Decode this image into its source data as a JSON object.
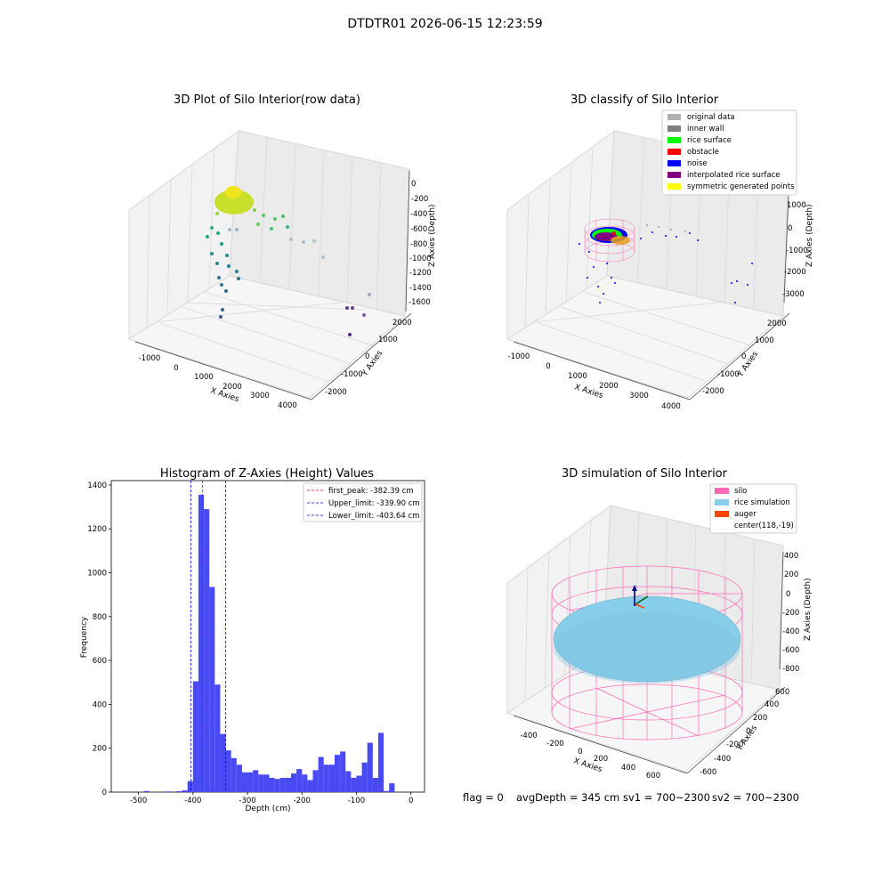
{
  "header": {
    "title": "DTDTR01 2026-06-15 12:23:59"
  },
  "chart_data": [
    {
      "type": "scatter",
      "title": "3D Plot of Silo Interior(row data)",
      "xlabel": "X Axies",
      "ylabel": "Y Axies",
      "zlabel": "Z Axies (Depth)",
      "x_ticks": [
        "-1000",
        "0",
        "1000",
        "2000",
        "3000",
        "4000"
      ],
      "y_ticks": [
        "2000",
        "1000",
        "0",
        "-1000",
        "-2000"
      ],
      "z_ticks": [
        "0",
        "-200",
        "-400",
        "-600",
        "-800",
        "-1000",
        "-1200",
        "-1400",
        "-1600"
      ],
      "colormap": "viridis"
    },
    {
      "type": "scatter",
      "title": "3D classify of Silo Interior",
      "xlabel": "X Axies",
      "ylabel": "Y Axies",
      "zlabel": "Z Axies (Depth)",
      "x_ticks": [
        "-1000",
        "0",
        "1000",
        "2000",
        "3000",
        "4000"
      ],
      "y_ticks": [
        "2000",
        "1000",
        "0",
        "-1000",
        "-2000"
      ],
      "z_ticks": [
        "1000",
        "0",
        "-1000",
        "-2000",
        "-3000"
      ],
      "legend_position": "top-right",
      "legend": [
        {
          "label": "original data",
          "color": "#b0b0b0"
        },
        {
          "label": "inner wall",
          "color": "#808080"
        },
        {
          "label": "rice surface",
          "color": "#00ff00"
        },
        {
          "label": "obstacle",
          "color": "#ff0000"
        },
        {
          "label": "noise",
          "color": "#0000ff"
        },
        {
          "label": "interpolated rice surface",
          "color": "#800080"
        },
        {
          "label": "symmetric generated points",
          "color": "#ffff00"
        }
      ]
    },
    {
      "type": "bar",
      "title": "Histogram of Z-Axies (Height) Values",
      "xlabel": "Depth (cm)",
      "ylabel": "Frequency",
      "xlim": [
        -550,
        25
      ],
      "ylim": [
        0,
        1420
      ],
      "x_ticks": [
        -500,
        -400,
        -300,
        -200,
        -100,
        0
      ],
      "y_ticks": [
        0,
        200,
        400,
        600,
        800,
        1000,
        1200,
        1400
      ],
      "bin_width": 10,
      "bars": [
        {
          "x": -485,
          "y": 5
        },
        {
          "x": -445,
          "y": 3
        },
        {
          "x": -425,
          "y": 4
        },
        {
          "x": -415,
          "y": 8
        },
        {
          "x": -405,
          "y": 50
        },
        {
          "x": -395,
          "y": 505
        },
        {
          "x": -385,
          "y": 1355
        },
        {
          "x": -375,
          "y": 1290
        },
        {
          "x": -365,
          "y": 935
        },
        {
          "x": -355,
          "y": 490
        },
        {
          "x": -345,
          "y": 265
        },
        {
          "x": -335,
          "y": 190
        },
        {
          "x": -325,
          "y": 155
        },
        {
          "x": -315,
          "y": 125
        },
        {
          "x": -305,
          "y": 90
        },
        {
          "x": -295,
          "y": 90
        },
        {
          "x": -285,
          "y": 100
        },
        {
          "x": -275,
          "y": 80
        },
        {
          "x": -265,
          "y": 80
        },
        {
          "x": -255,
          "y": 65
        },
        {
          "x": -245,
          "y": 60
        },
        {
          "x": -235,
          "y": 65
        },
        {
          "x": -225,
          "y": 65
        },
        {
          "x": -215,
          "y": 85
        },
        {
          "x": -205,
          "y": 105
        },
        {
          "x": -195,
          "y": 80
        },
        {
          "x": -185,
          "y": 55
        },
        {
          "x": -175,
          "y": 100
        },
        {
          "x": -165,
          "y": 160
        },
        {
          "x": -155,
          "y": 125
        },
        {
          "x": -145,
          "y": 125
        },
        {
          "x": -135,
          "y": 170
        },
        {
          "x": -125,
          "y": 185
        },
        {
          "x": -115,
          "y": 95
        },
        {
          "x": -105,
          "y": 65
        },
        {
          "x": -95,
          "y": 75
        },
        {
          "x": -85,
          "y": 135
        },
        {
          "x": -75,
          "y": 225
        },
        {
          "x": -65,
          "y": 65
        },
        {
          "x": -55,
          "y": 270
        },
        {
          "x": -45,
          "y": 5
        },
        {
          "x": -35,
          "y": 40
        }
      ],
      "lines": [
        {
          "label": "first_peak: -382.39 cm",
          "value": -382.39,
          "color": "#ff0000"
        },
        {
          "label": "Upper_limit: -339.90 cm",
          "value": -339.9,
          "color": "#0000ff"
        },
        {
          "label": "Lower_limit: -403.64 cm",
          "value": -403.64,
          "color": "#0000ff"
        }
      ],
      "bar_color": "#4a4af5",
      "legend_position": "top-right"
    },
    {
      "type": "scatter",
      "title": "3D simulation of Silo Interior",
      "xlabel": "X Axies",
      "ylabel": "Y Axies",
      "zlabel": "Z Axies (Depth)",
      "x_ticks": [
        "-400",
        "-200",
        "0",
        "200",
        "400",
        "600"
      ],
      "y_ticks": [
        "600",
        "400",
        "200",
        "0",
        "-200",
        "-400",
        "-600"
      ],
      "z_ticks": [
        "400",
        "200",
        "0",
        "-200",
        "-400",
        "-600",
        "-800"
      ],
      "legend_position": "top-right",
      "legend": [
        {
          "label": "silo",
          "color": "#ff69b4"
        },
        {
          "label": "rice simulation",
          "color": "#87ceeb"
        },
        {
          "label": "auger",
          "color": "#ff4500"
        },
        {
          "label": "center(118,-19)",
          "color": ""
        }
      ]
    }
  ],
  "footer": {
    "flag": "flag = 0",
    "avg": "avgDepth = 345 cm",
    "sv1": "sv1 = 700~2300",
    "sv2": "sv2 = 700~2300"
  }
}
